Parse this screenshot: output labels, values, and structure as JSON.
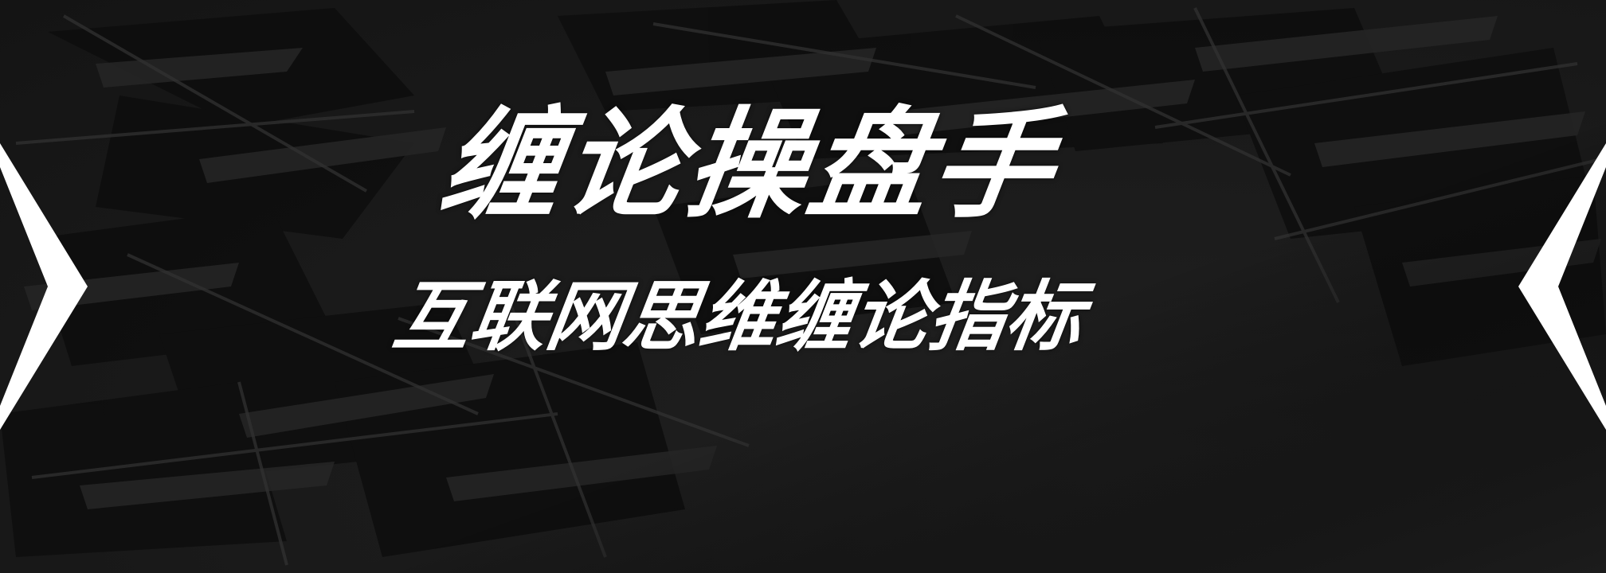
{
  "banner": {
    "title": "缠论操盘手",
    "subtitle": "互联网思维缠论指标"
  },
  "controls": {
    "prev_icon": "chevron-left-icon",
    "next_icon": "chevron-left-icon"
  },
  "colors": {
    "background": "#1b1b1b",
    "text": "#ffffff",
    "arrow": "#ffffff"
  }
}
